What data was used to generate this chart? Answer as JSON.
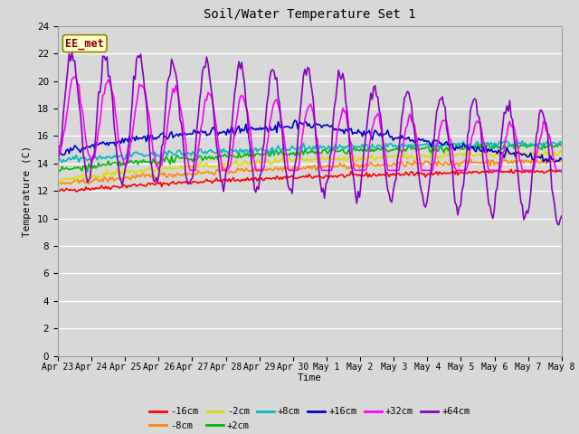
{
  "title": "Soil/Water Temperature Set 1",
  "xlabel": "Time",
  "ylabel": "Temperature (C)",
  "ylim": [
    0,
    24
  ],
  "yticks": [
    0,
    2,
    4,
    6,
    8,
    10,
    12,
    14,
    16,
    18,
    20,
    22,
    24
  ],
  "bg_color": "#d8d8d8",
  "plot_bg_color": "#d8d8d8",
  "annotation_text": "EE_met",
  "annotation_bg": "#ffffcc",
  "annotation_border": "#888800",
  "annotation_text_color": "#880000",
  "series": [
    {
      "label": "-16cm",
      "color": "#ff0000"
    },
    {
      "label": "-8cm",
      "color": "#ff8800"
    },
    {
      "label": "-2cm",
      "color": "#dddd00"
    },
    {
      "label": "+2cm",
      "color": "#00bb00"
    },
    {
      "label": "+8cm",
      "color": "#00bbbb"
    },
    {
      "label": "+16cm",
      "color": "#0000cc"
    },
    {
      "label": "+32cm",
      "color": "#ff00ff"
    },
    {
      "label": "+64cm",
      "color": "#8800bb"
    }
  ],
  "num_points": 360,
  "xtick_labels": [
    "Apr 23",
    "Apr 24",
    "Apr 25",
    "Apr 26",
    "Apr 27",
    "Apr 28",
    "Apr 29",
    "Apr 30",
    "May 1",
    "May 2",
    "May 3",
    "May 4",
    "May 5",
    "May 6",
    "May 7",
    "May 8"
  ]
}
